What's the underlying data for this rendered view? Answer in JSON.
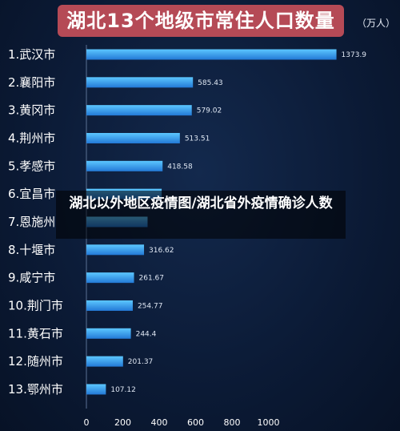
{
  "overlay_caption": "湖北以外地区疫情图/湖北省外疫情确诊人数",
  "colors": {
    "bar_top": "#5cc7ff",
    "bar_bottom": "#2379d6",
    "title_bg": "#b54a56"
  },
  "chart_data": {
    "type": "bar",
    "orientation": "horizontal",
    "title": "湖北13个地级市常住人口数量",
    "unit": "（万人）",
    "categories": [
      "1.武汉市",
      "2.襄阳市",
      "3.黄冈市",
      "4.荆州市",
      "5.孝感市",
      "6.宜昌市",
      "7.恩施州",
      "8.十堰市",
      "9.咸宁市",
      "10.荆门市",
      "11.黄石市",
      "12.随州市",
      "13.鄂州市"
    ],
    "values": [
      1373.9,
      585.43,
      579.02,
      513.51,
      418.58,
      413.56,
      336.1,
      316.62,
      261.67,
      254.77,
      244.4,
      201.37,
      107.12
    ],
    "value_labels": [
      "1373.9",
      "585.43",
      "579.02",
      "513.51",
      "418.58",
      "",
      "",
      "316.62",
      "261.67",
      "254.77",
      "244.4",
      "201.37",
      "107.12"
    ],
    "xticks": [
      0,
      200,
      400,
      600,
      800,
      1000
    ],
    "xlim": [
      0,
      1400
    ],
    "grid": false,
    "legend": "none"
  }
}
